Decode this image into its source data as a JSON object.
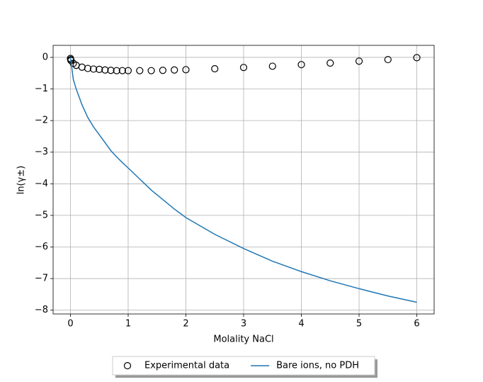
{
  "chart_data": {
    "type": "line",
    "x_label": "Molality NaCl",
    "y_label": "ln(γ±)",
    "xlim": [
      -0.3,
      6.3
    ],
    "ylim": [
      -8.12,
      0.38
    ],
    "xticks": [
      0,
      1,
      2,
      3,
      4,
      5,
      6
    ],
    "yticks": [
      {
        "value": -8,
        "label": "−8"
      },
      {
        "value": -7,
        "label": "−7"
      },
      {
        "value": -6,
        "label": "−6"
      },
      {
        "value": -5,
        "label": "−5"
      },
      {
        "value": -4,
        "label": "−4"
      },
      {
        "value": -3,
        "label": "−3"
      },
      {
        "value": -2,
        "label": "−2"
      },
      {
        "value": -1,
        "label": "−1"
      },
      0
    ],
    "grid": true,
    "legend": "below",
    "series": [
      {
        "name": "Experimental data",
        "type": "scatter",
        "color": "#000000",
        "x": [
          0.001,
          0.005,
          0.01,
          0.05,
          0.1,
          0.2,
          0.3,
          0.4,
          0.5,
          0.6,
          0.7,
          0.8,
          0.9,
          1.0,
          1.2,
          1.4,
          1.6,
          1.8,
          2.0,
          2.5,
          3.0,
          3.5,
          4.0,
          4.5,
          5.0,
          5.5,
          6.0
        ],
        "values": [
          -0.035,
          -0.074,
          -0.1,
          -0.19,
          -0.25,
          -0.31,
          -0.35,
          -0.37,
          -0.38,
          -0.4,
          -0.41,
          -0.42,
          -0.42,
          -0.42,
          -0.42,
          -0.42,
          -0.41,
          -0.4,
          -0.39,
          -0.36,
          -0.32,
          -0.28,
          -0.23,
          -0.18,
          -0.12,
          -0.07,
          -0.01
        ]
      },
      {
        "name": "Bare ions, no PDH",
        "type": "line",
        "color": "#1f77b4",
        "x": [
          0,
          0.05,
          0.1,
          0.2,
          0.3,
          0.4,
          0.5,
          0.6,
          0.7,
          0.8,
          0.9,
          1.0,
          1.2,
          1.4,
          1.6,
          1.8,
          2.0,
          2.5,
          3.0,
          3.5,
          4.0,
          4.5,
          5.0,
          5.5,
          6.0
        ],
        "values": [
          0,
          -0.7,
          -1.0,
          -1.5,
          -1.9,
          -2.2,
          -2.45,
          -2.7,
          -2.95,
          -3.15,
          -3.33,
          -3.5,
          -3.85,
          -4.2,
          -4.5,
          -4.8,
          -5.07,
          -5.6,
          -6.05,
          -6.45,
          -6.78,
          -7.07,
          -7.32,
          -7.55,
          -7.75
        ]
      }
    ]
  }
}
